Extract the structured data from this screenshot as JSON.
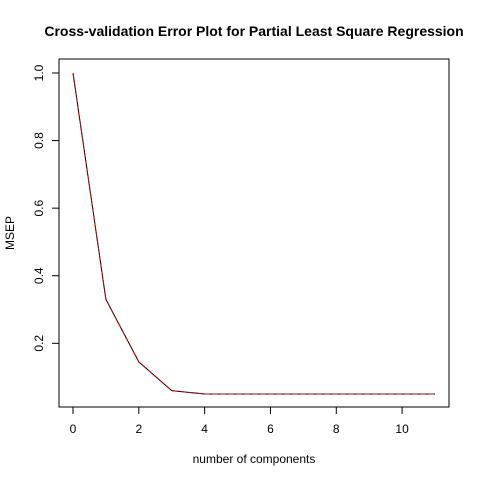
{
  "chart_data": {
    "type": "line",
    "title": "Cross-validation Error Plot for Partial Least Square Regression",
    "xlabel": "number of components",
    "ylabel": "MSEP",
    "xlim": [
      0,
      11
    ],
    "ylim": [
      0.05,
      1.0
    ],
    "xticks": [
      0,
      2,
      4,
      6,
      8,
      10
    ],
    "yticks": [
      0.2,
      0.4,
      0.6,
      0.8,
      1.0
    ],
    "ytick_labels": [
      "0.2",
      "0.4",
      "0.6",
      "0.8",
      "1.0"
    ],
    "grid": false,
    "legend": "none",
    "series": [
      {
        "color": "#000000",
        "x": [
          0,
          1,
          2,
          3,
          4,
          5,
          6,
          7,
          8,
          9,
          10,
          11
        ],
        "y": [
          1.0,
          0.33,
          0.145,
          0.06,
          0.05,
          0.05,
          0.05,
          0.05,
          0.05,
          0.05,
          0.05,
          0.05
        ]
      },
      {
        "color": "#c00000",
        "dashed": true,
        "x": [
          0,
          1,
          2,
          3,
          4,
          5,
          6,
          7,
          8,
          9,
          10,
          11
        ],
        "y": [
          1.0,
          0.33,
          0.145,
          0.06,
          0.05,
          0.05,
          0.05,
          0.05,
          0.05,
          0.05,
          0.05,
          0.05
        ]
      }
    ]
  }
}
